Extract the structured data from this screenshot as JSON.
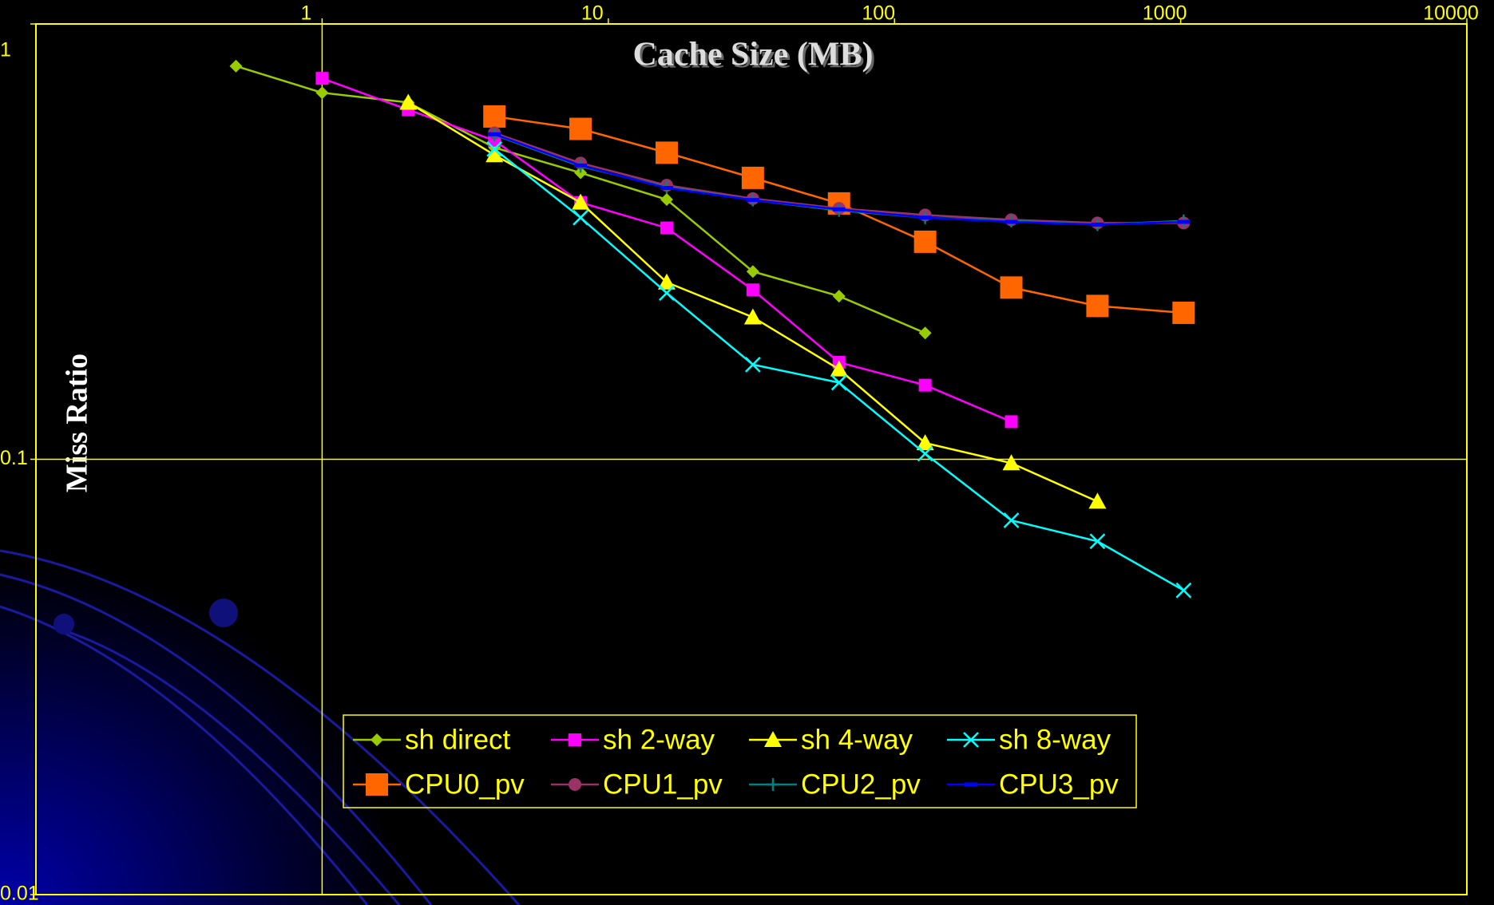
{
  "chart_data": {
    "type": "line",
    "xlabel": "Cache Size (MB)",
    "ylabel": "Miss Ratio",
    "x": [
      0.5,
      1,
      2,
      4,
      8,
      16,
      32,
      64,
      128,
      256,
      512,
      1024
    ],
    "xlim": [
      0.1,
      10000
    ],
    "xticks": [
      1,
      10,
      100,
      1000,
      10000
    ],
    "xscale": "log",
    "ylim": [
      0.01,
      1
    ],
    "yticks": [
      0.01,
      0.1,
      1
    ],
    "yscale": "log",
    "x_axis_crosses": 0.1,
    "y_axis_crosses": 1,
    "legend": "bottom",
    "series": [
      {
        "name": "sh direct",
        "color": "#99cc00",
        "marker": "diamond",
        "values": [
          0.8,
          0.695,
          0.66,
          0.52,
          0.455,
          0.395,
          0.27,
          0.237,
          0.195,
          null,
          null,
          null
        ]
      },
      {
        "name": "sh 2-way",
        "color": "#ff00ff",
        "marker": "square",
        "values": [
          null,
          0.75,
          0.635,
          0.54,
          0.389,
          0.34,
          0.245,
          0.167,
          0.148,
          0.122,
          null,
          null
        ]
      },
      {
        "name": "sh 4-way",
        "color": "#ffff00",
        "marker": "triangle",
        "values": [
          null,
          null,
          0.66,
          0.5,
          0.389,
          0.255,
          0.212,
          0.161,
          0.109,
          0.098,
          0.08,
          null
        ]
      },
      {
        "name": "sh 8-way",
        "color": "#00ffff",
        "marker": "x",
        "values": [
          null,
          null,
          null,
          0.516,
          0.359,
          0.241,
          0.165,
          0.15,
          0.103,
          0.0724,
          0.0648,
          0.05
        ]
      },
      {
        "name": "CPU0_pv",
        "color": "#ff6600",
        "marker": "bigsquare",
        "values": [
          null,
          null,
          null,
          0.613,
          0.574,
          0.506,
          0.443,
          0.387,
          0.316,
          0.248,
          0.225,
          0.217
        ]
      },
      {
        "name": "CPU1_pv",
        "color": "#993366",
        "marker": "circle",
        "values": [
          null,
          null,
          null,
          0.562,
          0.479,
          0.426,
          0.397,
          0.377,
          0.364,
          0.355,
          0.349,
          0.349
        ]
      },
      {
        "name": "CPU2_pv",
        "color": "#008080",
        "marker": "plus",
        "values": [
          null,
          null,
          null,
          0.556,
          0.471,
          0.422,
          0.394,
          0.373,
          0.359,
          0.353,
          0.346,
          0.353
        ]
      },
      {
        "name": "CPU3_pv",
        "color": "#0000ff",
        "marker": "dash",
        "values": [
          null,
          null,
          null,
          0.558,
          0.473,
          0.42,
          0.394,
          0.375,
          0.359,
          0.351,
          0.346,
          0.351
        ]
      }
    ]
  }
}
